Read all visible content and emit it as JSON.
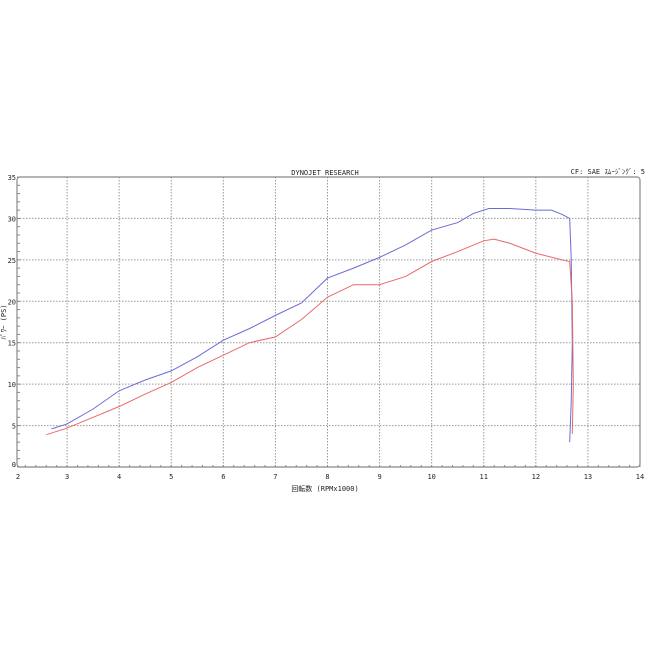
{
  "chart_data": {
    "type": "line",
    "title": "DYNOJET RESEARCH",
    "subtitle": "CF: SAE  ｽﾑｰｼﾞﾝｸﾞ: 5",
    "xlabel": "回転数 (RPMx1000)",
    "ylabel": "ﾊﾟﾜｰ (PS)",
    "xlim": [
      2,
      14
    ],
    "ylim": [
      0,
      35
    ],
    "xticks": [
      "2",
      "3",
      "4",
      "5",
      "6",
      "7",
      "8",
      "9",
      "10",
      "11",
      "12",
      "13",
      "14"
    ],
    "yticks": [
      "0",
      "5",
      "10",
      "15",
      "20",
      "25",
      "30",
      "35"
    ],
    "grid": true,
    "series": [
      {
        "color": "#6b6bd8",
        "points": [
          [
            2.7,
            4.6
          ],
          [
            3,
            5.2
          ],
          [
            3.5,
            7
          ],
          [
            4,
            9.2
          ],
          [
            4.5,
            10.5
          ],
          [
            5,
            11.6
          ],
          [
            5.5,
            13.3
          ],
          [
            6,
            15.3
          ],
          [
            6.5,
            16.7
          ],
          [
            7,
            18.3
          ],
          [
            7.5,
            19.8
          ],
          [
            8,
            22.8
          ],
          [
            8.5,
            24
          ],
          [
            9,
            25.3
          ],
          [
            9.5,
            26.8
          ],
          [
            10,
            28.6
          ],
          [
            10.5,
            29.5
          ],
          [
            10.8,
            30.6
          ],
          [
            11.1,
            31.2
          ],
          [
            11.5,
            31.2
          ],
          [
            12,
            31
          ],
          [
            12.3,
            31
          ],
          [
            12.5,
            30.5
          ],
          [
            12.65,
            30
          ],
          [
            12.68,
            25
          ],
          [
            12.7,
            15
          ],
          [
            12.68,
            8
          ],
          [
            12.65,
            3
          ]
        ]
      },
      {
        "color": "#e86a6a",
        "points": [
          [
            2.6,
            3.9
          ],
          [
            3,
            4.7
          ],
          [
            3.5,
            6
          ],
          [
            4,
            7.3
          ],
          [
            4.5,
            8.8
          ],
          [
            5,
            10.2
          ],
          [
            5.5,
            12
          ],
          [
            6,
            13.5
          ],
          [
            6.5,
            15
          ],
          [
            7,
            15.7
          ],
          [
            7.5,
            17.8
          ],
          [
            8,
            20.5
          ],
          [
            8.5,
            22
          ],
          [
            9,
            22
          ],
          [
            9.5,
            23
          ],
          [
            10,
            24.8
          ],
          [
            10.5,
            26
          ],
          [
            11,
            27.3
          ],
          [
            11.2,
            27.5
          ],
          [
            11.5,
            27
          ],
          [
            12,
            25.8
          ],
          [
            12.5,
            25
          ],
          [
            12.65,
            24.8
          ],
          [
            12.7,
            20
          ],
          [
            12.72,
            10
          ],
          [
            12.7,
            4
          ]
        ]
      }
    ]
  }
}
